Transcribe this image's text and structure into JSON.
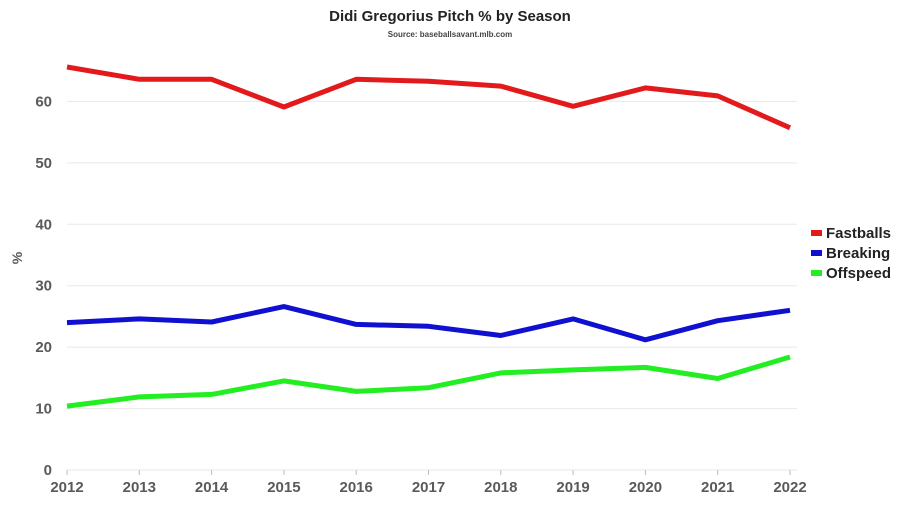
{
  "chart_data": {
    "type": "line",
    "title": "Didi Gregorius Pitch % by Season",
    "subtitle": "Source: baseballsavant.mlb.com",
    "xlabel": "",
    "ylabel": "%",
    "x": [
      "2012",
      "2013",
      "2014",
      "2015",
      "2016",
      "2017",
      "2018",
      "2019",
      "2020",
      "2021",
      "2022"
    ],
    "ylim": [
      0,
      70
    ],
    "yticks": [
      "0",
      "10",
      "20",
      "30",
      "40",
      "50",
      "60"
    ],
    "grid": true,
    "legend_position": "right",
    "series": [
      {
        "name": "Fastballs",
        "color": "#e31a1c",
        "values": [
          65.6,
          63.6,
          63.6,
          59.1,
          63.6,
          63.3,
          62.5,
          59.2,
          62.2,
          60.9,
          55.7
        ]
      },
      {
        "name": "Breaking",
        "color": "#1010d0",
        "values": [
          24.0,
          24.6,
          24.1,
          26.6,
          23.7,
          23.4,
          21.9,
          24.6,
          21.2,
          24.3,
          26.0
        ]
      },
      {
        "name": "Offspeed",
        "color": "#22ee22",
        "values": [
          10.4,
          11.9,
          12.3,
          14.5,
          12.8,
          13.4,
          15.8,
          16.3,
          16.7,
          14.9,
          18.4
        ]
      }
    ]
  }
}
